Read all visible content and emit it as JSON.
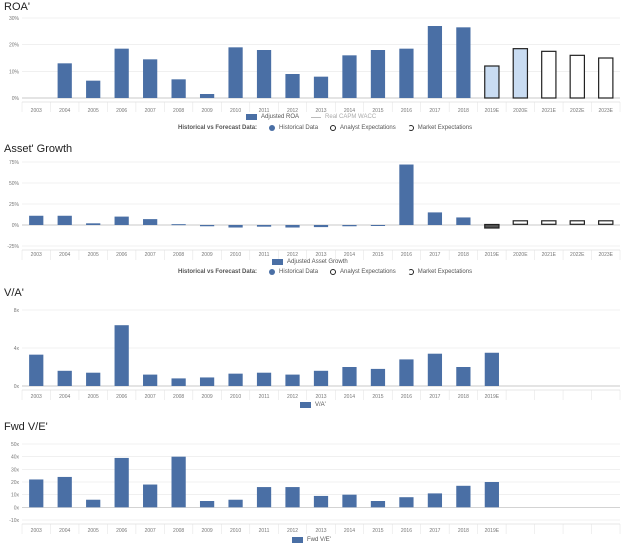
{
  "chart_data": [
    {
      "type": "bar",
      "title": "ROA'",
      "categories": [
        "2003",
        "2004",
        "2005",
        "2006",
        "2007",
        "2008",
        "2009",
        "2010",
        "2011",
        "2012",
        "2013",
        "2014",
        "2015",
        "2016",
        "2017",
        "2018",
        "2019E",
        "2020E",
        "2021E",
        "2022E",
        "2023E"
      ],
      "values": [
        null,
        13,
        6.5,
        18.5,
        14.5,
        7,
        1.5,
        19,
        18,
        9,
        8,
        16,
        18,
        18.5,
        27,
        26.5,
        12,
        18.5,
        17.5,
        16,
        15
      ],
      "styles": [
        "hist",
        "hist",
        "hist",
        "hist",
        "hist",
        "hist",
        "hist",
        "hist",
        "hist",
        "hist",
        "hist",
        "hist",
        "hist",
        "hist",
        "hist",
        "hist",
        "analyst",
        "analyst",
        "market",
        "market",
        "market"
      ],
      "yticks": [
        "0%",
        "10%",
        "20%",
        "30%"
      ],
      "ylim": [
        0,
        30
      ],
      "legend": [
        "Adjusted ROA",
        "Real CAPM WACC"
      ],
      "forecast_legend": {
        "label": "Historical vs Forecast Data:",
        "items": [
          "Historical Data",
          "Analyst Expectations",
          "Market Expectations"
        ]
      }
    },
    {
      "type": "bar",
      "title": "Asset' Growth",
      "categories": [
        "2003",
        "2004",
        "2005",
        "2006",
        "2007",
        "2008",
        "2009",
        "2010",
        "2011",
        "2012",
        "2013",
        "2014",
        "2015",
        "2016",
        "2017",
        "2018",
        "2019E",
        "2020E",
        "2021E",
        "2022E",
        "2023E"
      ],
      "values": [
        11,
        11,
        2,
        10,
        7,
        1,
        -1.5,
        -3,
        -2,
        -3,
        -2.5,
        -1.5,
        -1,
        72,
        15,
        9,
        -4,
        5,
        5,
        5,
        5
      ],
      "styles": [
        "hist",
        "hist",
        "hist",
        "hist",
        "hist",
        "hist",
        "hist",
        "hist",
        "hist",
        "hist",
        "hist",
        "hist",
        "hist",
        "hist",
        "hist",
        "hist",
        "analyst",
        "market",
        "market",
        "market",
        "market"
      ],
      "yticks": [
        "-25%",
        "0%",
        "25%",
        "50%",
        "75%"
      ],
      "ylim": [
        -25,
        75
      ],
      "legend": [
        "Adjusted Asset Growth"
      ],
      "forecast_legend": {
        "label": "Historical vs Forecast Data:",
        "items": [
          "Historical Data",
          "Analyst Expectations",
          "Market Expectations"
        ]
      }
    },
    {
      "type": "bar",
      "title": "V/A'",
      "categories": [
        "2003",
        "2004",
        "2005",
        "2006",
        "2007",
        "2008",
        "2009",
        "2010",
        "2011",
        "2012",
        "2013",
        "2014",
        "2015",
        "2016",
        "2017",
        "2018",
        "2019E",
        "",
        "",
        "",
        ""
      ],
      "values": [
        3.3,
        1.6,
        1.4,
        6.4,
        1.2,
        0.8,
        0.9,
        1.3,
        1.4,
        1.2,
        1.6,
        2.0,
        1.8,
        2.8,
        3.4,
        2.0,
        3.5,
        null,
        null,
        null,
        null
      ],
      "yticks": [
        "0x",
        "4x",
        "8x"
      ],
      "ylim": [
        0,
        8
      ],
      "legend": [
        "V/A'"
      ]
    },
    {
      "type": "bar",
      "title": "Fwd V/E'",
      "categories": [
        "2003",
        "2004",
        "2005",
        "2006",
        "2007",
        "2008",
        "2009",
        "2010",
        "2011",
        "2012",
        "2013",
        "2014",
        "2015",
        "2016",
        "2017",
        "2018",
        "2019E",
        "",
        "",
        "",
        ""
      ],
      "values": [
        22,
        24,
        6,
        39,
        18,
        40,
        5,
        6,
        16,
        16,
        9,
        10,
        5,
        8,
        11,
        17,
        20,
        null,
        null,
        null,
        null
      ],
      "yticks": [
        "-10x",
        "0x",
        "10x",
        "20x",
        "30x",
        "40x",
        "50x"
      ],
      "ylim": [
        -10,
        50
      ],
      "legend": [
        "Fwd V/E'"
      ]
    }
  ]
}
